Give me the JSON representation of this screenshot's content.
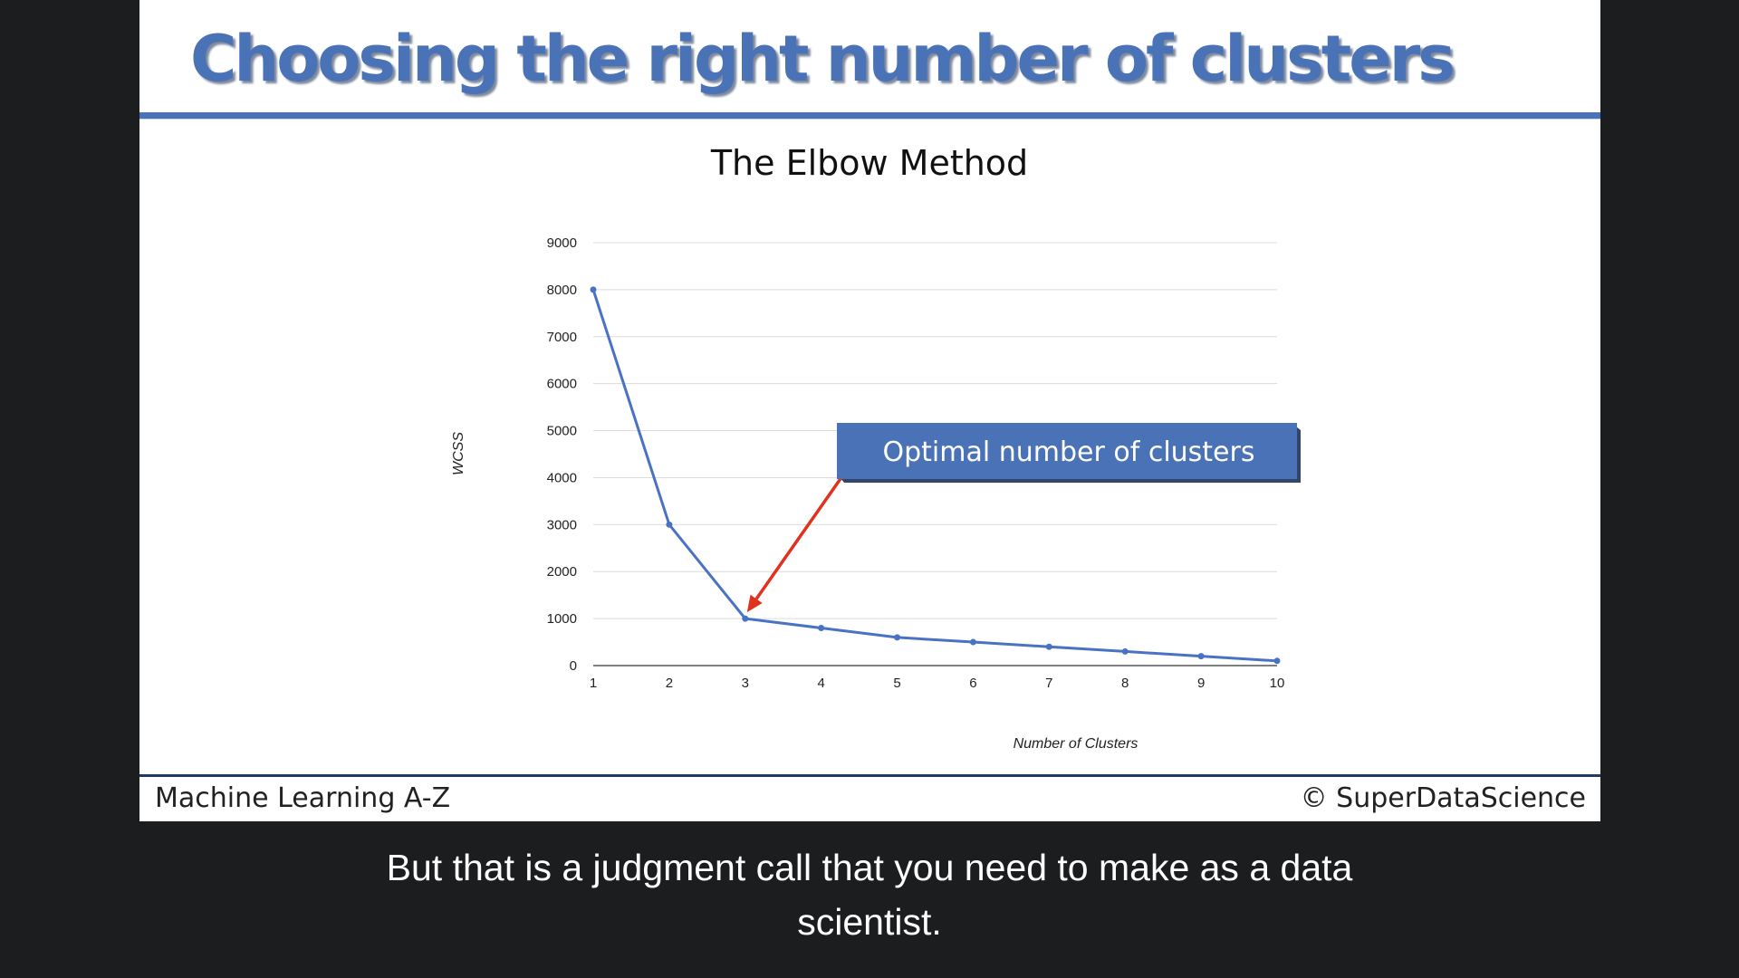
{
  "slide": {
    "title": "Choosing the right number of clusters",
    "footer_left": "Machine Learning A-Z",
    "footer_right": "© SuperDataScience"
  },
  "chart_data": {
    "type": "line",
    "title": "The Elbow Method",
    "xlabel": "Number of Clusters",
    "ylabel": "WCSS",
    "x": [
      1,
      2,
      3,
      4,
      5,
      6,
      7,
      8,
      9,
      10
    ],
    "series": [
      {
        "values": [
          8000,
          3000,
          1000,
          800,
          600,
          500,
          400,
          300,
          200,
          100
        ]
      }
    ],
    "xticks": [
      "1",
      "2",
      "3",
      "4",
      "5",
      "6",
      "7",
      "8",
      "9",
      "10"
    ],
    "yticks": [
      "0",
      "1000",
      "2000",
      "3000",
      "4000",
      "5000",
      "6000",
      "7000",
      "8000",
      "9000"
    ],
    "ylim": [
      0,
      9000
    ],
    "xlim": [
      1,
      10
    ],
    "grid": true,
    "line_color": "#4a72c4",
    "annotation": {
      "text": "Optimal number of clusters",
      "points_to_x": 3,
      "points_to_y": 1000,
      "box_color": "#4a72b6",
      "arrow_color": "#e0321f"
    }
  },
  "caption": {
    "line1": "But that is a judgment call that you need to make as a data",
    "line2": "scientist."
  }
}
